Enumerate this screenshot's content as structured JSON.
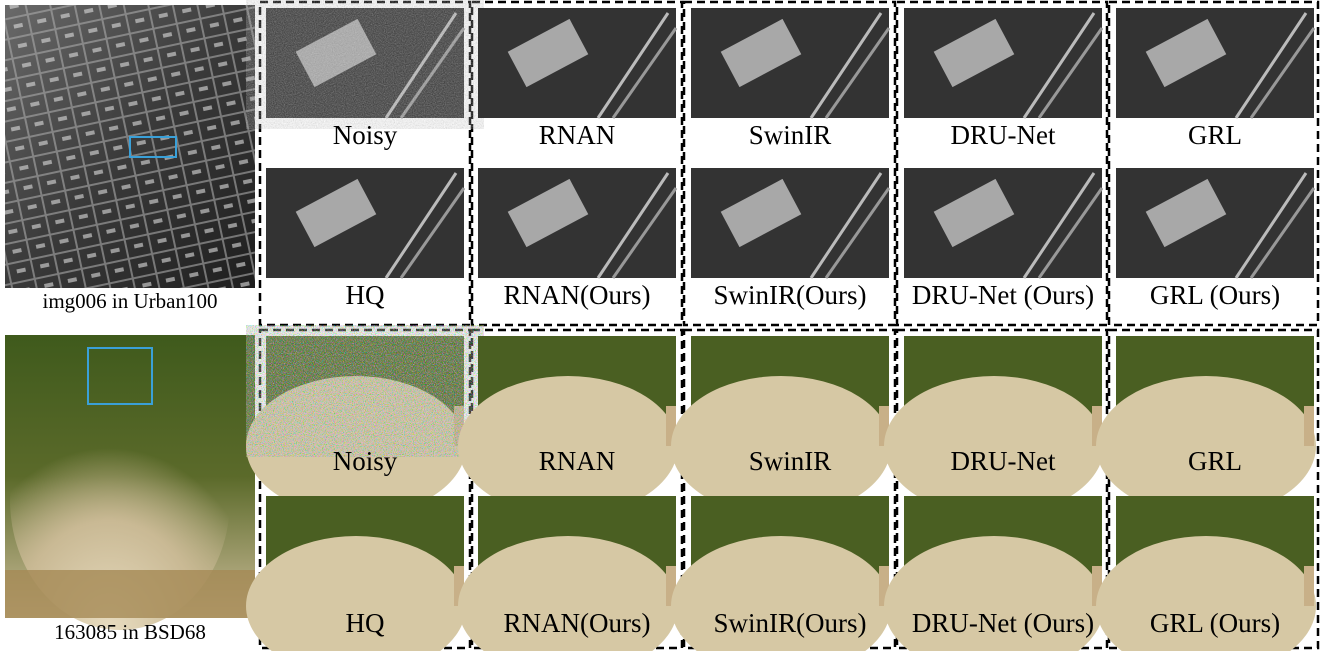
{
  "examples": [
    {
      "source_caption": "img006 in Urban100",
      "labels": [
        "Noisy",
        "RNAN",
        "SwinIR",
        "DRU-Net",
        "GRL",
        "HQ",
        "RNAN(Ours)",
        "SwinIR(Ours)",
        "DRU-Net (Ours)",
        "GRL (Ours)"
      ]
    },
    {
      "source_caption": "163085 in BSD68",
      "labels": [
        "Noisy",
        "RNAN",
        "SwinIR",
        "DRU-Net",
        "GRL",
        "HQ",
        "RNAN(Ours)",
        "SwinIR(Ours)",
        "DRU-Net (Ours)",
        "GRL (Ours)"
      ]
    }
  ]
}
